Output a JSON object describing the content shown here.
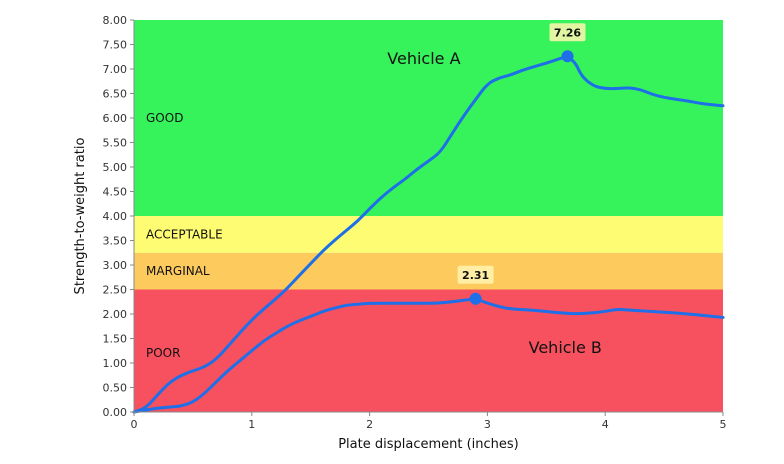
{
  "chart_data": {
    "type": "line",
    "xlabel": "Plate displacement (inches)",
    "ylabel": "Strength-to-weight ratio",
    "xlim": [
      0,
      5
    ],
    "ylim": [
      0,
      8
    ],
    "x_ticks": [
      "0",
      "1",
      "2",
      "3",
      "4",
      "5"
    ],
    "y_ticks": [
      "0.00",
      "0.50",
      "1.00",
      "1.50",
      "2.00",
      "2.50",
      "3.00",
      "3.50",
      "4.00",
      "4.50",
      "5.00",
      "5.50",
      "6.00",
      "6.50",
      "7.00",
      "7.50",
      "8.00"
    ],
    "bands": [
      {
        "label": "POOR",
        "from": 0,
        "to": 2.5,
        "color": "#f7515f"
      },
      {
        "label": "MARGINAL",
        "from": 2.5,
        "to": 3.25,
        "color": "#fdcb5d"
      },
      {
        "label": "ACCEPTABLE",
        "from": 3.25,
        "to": 4.0,
        "color": "#fdfc72"
      },
      {
        "label": "GOOD",
        "from": 4.0,
        "to": 8.0,
        "color": "#36f35b"
      }
    ],
    "series": [
      {
        "name": "Vehicle A",
        "color": "#1e6fe8",
        "peak": {
          "x": 3.68,
          "y": 7.26,
          "label": "7.26"
        },
        "points": [
          [
            0,
            0
          ],
          [
            0.1,
            0.08
          ],
          [
            0.2,
            0.35
          ],
          [
            0.3,
            0.6
          ],
          [
            0.4,
            0.75
          ],
          [
            0.5,
            0.84
          ],
          [
            0.6,
            0.92
          ],
          [
            0.7,
            1.08
          ],
          [
            0.8,
            1.35
          ],
          [
            0.9,
            1.62
          ],
          [
            1.0,
            1.88
          ],
          [
            1.1,
            2.1
          ],
          [
            1.2,
            2.3
          ],
          [
            1.3,
            2.52
          ],
          [
            1.4,
            2.78
          ],
          [
            1.5,
            3.03
          ],
          [
            1.6,
            3.28
          ],
          [
            1.7,
            3.5
          ],
          [
            1.8,
            3.7
          ],
          [
            1.9,
            3.9
          ],
          [
            2.0,
            4.15
          ],
          [
            2.1,
            4.38
          ],
          [
            2.2,
            4.58
          ],
          [
            2.3,
            4.75
          ],
          [
            2.4,
            4.95
          ],
          [
            2.5,
            5.12
          ],
          [
            2.6,
            5.3
          ],
          [
            2.7,
            5.68
          ],
          [
            2.8,
            6.05
          ],
          [
            2.9,
            6.38
          ],
          [
            3.0,
            6.7
          ],
          [
            3.1,
            6.82
          ],
          [
            3.2,
            6.88
          ],
          [
            3.3,
            6.98
          ],
          [
            3.4,
            7.05
          ],
          [
            3.5,
            7.12
          ],
          [
            3.6,
            7.2
          ],
          [
            3.68,
            7.26
          ],
          [
            3.75,
            7.12
          ],
          [
            3.8,
            6.85
          ],
          [
            3.9,
            6.65
          ],
          [
            4.0,
            6.6
          ],
          [
            4.1,
            6.6
          ],
          [
            4.2,
            6.62
          ],
          [
            4.3,
            6.58
          ],
          [
            4.4,
            6.48
          ],
          [
            4.5,
            6.42
          ],
          [
            4.6,
            6.38
          ],
          [
            4.7,
            6.35
          ],
          [
            4.8,
            6.3
          ],
          [
            4.9,
            6.27
          ],
          [
            5.0,
            6.25
          ]
        ]
      },
      {
        "name": "Vehicle B",
        "color": "#1e6fe8",
        "peak": {
          "x": 2.9,
          "y": 2.31,
          "label": "2.31"
        },
        "points": [
          [
            0,
            0
          ],
          [
            0.1,
            0.04
          ],
          [
            0.2,
            0.08
          ],
          [
            0.3,
            0.1
          ],
          [
            0.4,
            0.12
          ],
          [
            0.5,
            0.2
          ],
          [
            0.6,
            0.38
          ],
          [
            0.7,
            0.62
          ],
          [
            0.8,
            0.85
          ],
          [
            0.9,
            1.05
          ],
          [
            1.0,
            1.25
          ],
          [
            1.1,
            1.45
          ],
          [
            1.2,
            1.6
          ],
          [
            1.3,
            1.75
          ],
          [
            1.4,
            1.86
          ],
          [
            1.5,
            1.95
          ],
          [
            1.6,
            2.05
          ],
          [
            1.7,
            2.12
          ],
          [
            1.8,
            2.18
          ],
          [
            1.9,
            2.2
          ],
          [
            2.0,
            2.22
          ],
          [
            2.2,
            2.22
          ],
          [
            2.4,
            2.22
          ],
          [
            2.6,
            2.22
          ],
          [
            2.8,
            2.28
          ],
          [
            2.9,
            2.31
          ],
          [
            3.0,
            2.22
          ],
          [
            3.1,
            2.15
          ],
          [
            3.2,
            2.1
          ],
          [
            3.4,
            2.08
          ],
          [
            3.6,
            2.02
          ],
          [
            3.8,
            2.0
          ],
          [
            4.0,
            2.05
          ],
          [
            4.1,
            2.1
          ],
          [
            4.2,
            2.08
          ],
          [
            4.4,
            2.05
          ],
          [
            4.6,
            2.02
          ],
          [
            4.8,
            1.98
          ],
          [
            5.0,
            1.93
          ]
        ]
      }
    ]
  }
}
